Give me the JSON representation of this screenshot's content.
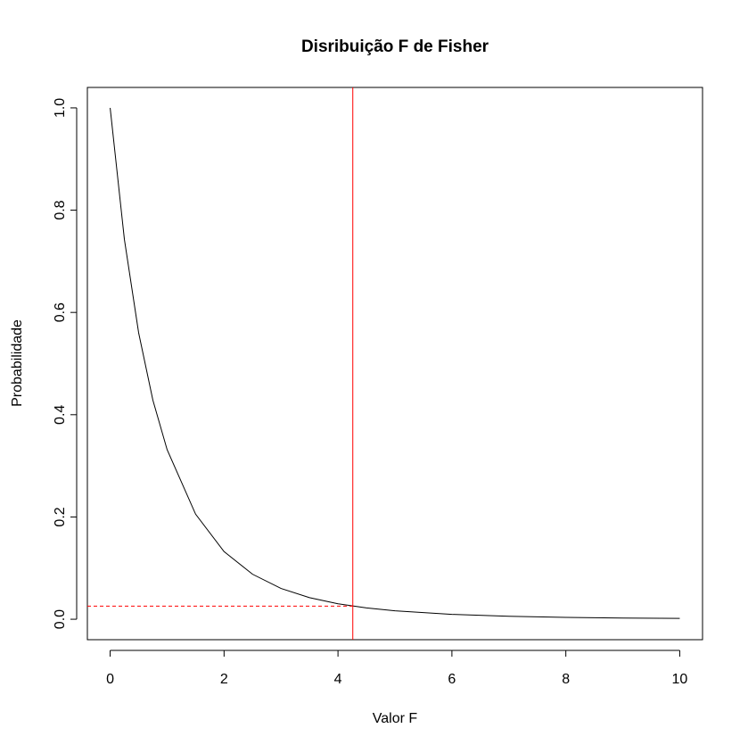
{
  "chart_data": {
    "type": "line",
    "title": "Disribuição F de Fisher",
    "x_label": "Valor F",
    "y_label": "Probabilidade",
    "x": [
      0,
      0.25,
      0.5,
      0.75,
      1,
      1.5,
      2,
      2.5,
      3,
      3.5,
      4,
      4.5,
      5,
      6,
      7,
      8,
      9,
      10
    ],
    "series": [
      {
        "color": "#000000",
        "values": [
          1,
          0.7428,
          0.5602,
          0.4284,
          0.3317,
          0.2055,
          0.1323,
          0.088,
          0.0602,
          0.0422,
          0.0303,
          0.0221,
          0.0164,
          0.0095,
          0.0057,
          0.0036,
          0.0024,
          0.0016
        ]
      }
    ],
    "xlim": [
      -0.4,
      10.4
    ],
    "ylim": [
      -0.04,
      1.04
    ],
    "xticks": [
      0,
      2,
      4,
      6,
      8,
      10
    ],
    "yticks": [
      {
        "value": 0,
        "label": "0.0"
      },
      0.2,
      0.4,
      0.6,
      0.8,
      {
        "value": 1,
        "label": "1.0"
      }
    ],
    "vline": {
      "x": 4.26,
      "color": "#ff0000"
    },
    "hline": {
      "y": 0.0256,
      "color": "#ff0000",
      "dashed": true
    }
  }
}
